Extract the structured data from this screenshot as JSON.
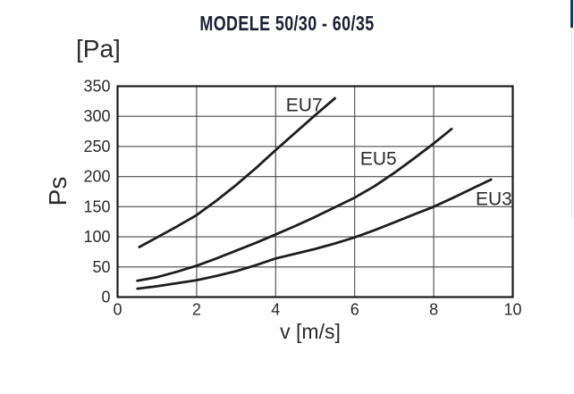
{
  "title": "MODELE 50/30 - 60/35",
  "y_unit_label": "[Pa]",
  "colors": {
    "title_text": "#1d2030",
    "axis_text": "#2b2b2b",
    "grid_line": "#4a4a4a",
    "plot_border": "#1a1a1a",
    "curve": "#1e1e1e",
    "edge_bar": "#0e3d57",
    "edge_line": "#e7e9ea"
  },
  "chart_data": {
    "type": "line",
    "title": "MODELE 50/30 - 60/35",
    "xlabel": "v [m/s]",
    "ylabel": "Ps",
    "y_unit": "[Pa]",
    "xlim": [
      0,
      10
    ],
    "ylim": [
      0,
      350
    ],
    "x_ticks": [
      0,
      2,
      4,
      6,
      8,
      10
    ],
    "y_ticks": [
      0,
      50,
      100,
      150,
      200,
      250,
      300,
      350
    ],
    "grid": true,
    "legend_position": "inline-labels",
    "series": [
      {
        "name": "EU7",
        "points": [
          [
            0.55,
            83
          ],
          [
            1,
            99
          ],
          [
            1.5,
            117
          ],
          [
            2,
            136
          ],
          [
            2.5,
            160
          ],
          [
            3,
            186
          ],
          [
            3.5,
            214
          ],
          [
            4,
            244
          ],
          [
            4.5,
            273
          ],
          [
            5,
            302
          ],
          [
            5.5,
            330
          ]
        ],
        "label_anchor": {
          "v": 4.26,
          "ps": 334
        }
      },
      {
        "name": "EU5",
        "points": [
          [
            0.5,
            27
          ],
          [
            1,
            33
          ],
          [
            1.5,
            42
          ],
          [
            2,
            52
          ],
          [
            2.5,
            64
          ],
          [
            3,
            77
          ],
          [
            3.5,
            90
          ],
          [
            4,
            104
          ],
          [
            4.5,
            118
          ],
          [
            5,
            133
          ],
          [
            5.5,
            149
          ],
          [
            6,
            165
          ],
          [
            6.5,
            184
          ],
          [
            7,
            206
          ],
          [
            7.5,
            230
          ],
          [
            8,
            255
          ],
          [
            8.45,
            279
          ]
        ],
        "label_anchor": {
          "v": 6.14,
          "ps": 245
        }
      },
      {
        "name": "EU3",
        "points": [
          [
            0.5,
            14
          ],
          [
            1,
            18
          ],
          [
            1.5,
            23
          ],
          [
            2,
            28
          ],
          [
            2.5,
            35
          ],
          [
            3,
            43
          ],
          [
            3.5,
            53
          ],
          [
            4,
            64
          ],
          [
            4.5,
            72
          ],
          [
            5,
            80
          ],
          [
            5.5,
            89
          ],
          [
            6,
            99
          ],
          [
            6.5,
            111
          ],
          [
            7,
            124
          ],
          [
            7.5,
            137
          ],
          [
            8,
            150
          ],
          [
            8.5,
            165
          ],
          [
            9,
            181
          ],
          [
            9.45,
            195
          ]
        ],
        "label_anchor": {
          "v": 9.06,
          "ps": 178
        }
      }
    ]
  }
}
